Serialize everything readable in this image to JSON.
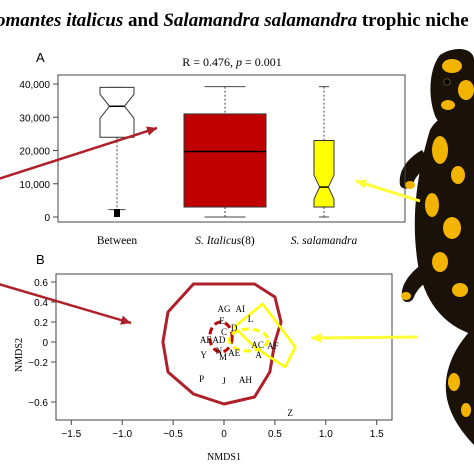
{
  "figure": {
    "title_parts": [
      {
        "text": "omantes italicus",
        "italic": true
      },
      {
        "text": " and ",
        "italic": false
      },
      {
        "text": "Salamandra salamandra",
        "italic": true
      },
      {
        "text": " trophic niche",
        "italic": false
      }
    ],
    "colors": {
      "italicus": "#c00000",
      "salamandra": "#ffff00",
      "arrow_red": "#b0202a",
      "arrow_yellow": "#ffff33",
      "salamander_black": "#1a1208",
      "salamander_yellow": "#f3b400"
    },
    "decor": [
      "salamander-photo",
      "red-arrows",
      "yellow-arrows"
    ]
  },
  "chart_data": [
    {
      "type": "boxplot",
      "panel_label": "A",
      "stat_text_prefix": "R = 0.476, ",
      "stat_p_symbol": "p",
      "stat_text_suffix": " = 0.001",
      "ylim": [
        0,
        40000
      ],
      "yticks": [
        0,
        10000,
        20000,
        30000,
        40000
      ],
      "ytick_labels": [
        "0",
        "10,000",
        "20,000",
        "30,000",
        "40,000"
      ],
      "categories": [
        {
          "label": "Between",
          "italic": false
        },
        {
          "label": "S. Italicus(8)",
          "italic": true,
          "italic_part": "S. Italicus",
          "plain_part": "(8)"
        },
        {
          "label": "S. salamandra",
          "italic": true,
          "italic_part": "S. salamandra",
          "plain_part": ""
        }
      ],
      "boxes": [
        {
          "q1": 24000,
          "median": 33300,
          "q3": 39000,
          "whisker_low": 2200,
          "whisker_high": 39000,
          "notch": true,
          "fill": "#ffffff",
          "outliers_low": [
            1800,
            1500,
            1200,
            900,
            600,
            300
          ]
        },
        {
          "q1": 3000,
          "median": 19700,
          "q3": 31000,
          "whisker_low": 0,
          "whisker_high": 39200,
          "notch": false,
          "fill": "#c00000",
          "outliers_low": []
        },
        {
          "q1": 3000,
          "median": 9000,
          "q3": 23000,
          "whisker_low": 0,
          "whisker_high": 39200,
          "notch": true,
          "fill": "#ffff00",
          "outliers_low": []
        }
      ]
    },
    {
      "type": "scatter",
      "panel_label": "B",
      "xlabel": "NMDS1",
      "ylabel": "NMDS2",
      "xlim": [
        -1.65,
        1.65
      ],
      "ylim": [
        -0.78,
        0.68
      ],
      "xticks": [
        -1.5,
        -1.0,
        -0.5,
        0,
        0.5,
        1.0,
        1.5
      ],
      "xtick_labels": [
        "−1.5",
        "−1.0",
        "−0.5",
        "0",
        "0.5",
        "1.0",
        "1.5"
      ],
      "yticks": [
        0.6,
        0.4,
        0.2,
        0,
        -0.2,
        -0.6
      ],
      "ytick_labels": [
        "0.6",
        "0.4",
        "0.2",
        "0",
        "−0.2",
        "−0.6"
      ],
      "points": [
        {
          "label": "AG",
          "x": 0.0,
          "y": 0.33
        },
        {
          "label": "AI",
          "x": 0.16,
          "y": 0.33
        },
        {
          "label": "L",
          "x": 0.26,
          "y": 0.23
        },
        {
          "label": "E",
          "x": -0.02,
          "y": 0.21
        },
        {
          "label": "D",
          "x": 0.1,
          "y": 0.14
        },
        {
          "label": "C",
          "x": 0.0,
          "y": 0.1
        },
        {
          "label": "AF",
          "x": -0.18,
          "y": 0.02
        },
        {
          "label": "AD",
          "x": -0.05,
          "y": 0.02
        },
        {
          "label": "AC",
          "x": 0.33,
          "y": -0.03
        },
        {
          "label": "AF",
          "x": 0.48,
          "y": -0.04
        },
        {
          "label": "N",
          "x": -0.05,
          "y": -0.09
        },
        {
          "label": "AE",
          "x": 0.1,
          "y": -0.11
        },
        {
          "label": "Y",
          "x": -0.2,
          "y": -0.13
        },
        {
          "label": "M",
          "x": -0.01,
          "y": -0.15
        },
        {
          "label": "A",
          "x": 0.34,
          "y": -0.13
        },
        {
          "label": "P",
          "x": -0.22,
          "y": -0.37
        },
        {
          "label": "J",
          "x": 0.0,
          "y": -0.39
        },
        {
          "label": "AH",
          "x": 0.21,
          "y": -0.38
        },
        {
          "label": "Z",
          "x": 0.65,
          "y": -0.71
        }
      ],
      "hulls": [
        {
          "group": "italicus-outer",
          "color": "#b0202a",
          "dashed": false,
          "points": [
            [
              -0.3,
              0.58
            ],
            [
              0.3,
              0.58
            ],
            [
              0.5,
              0.45
            ],
            [
              0.56,
              0.2
            ],
            [
              0.5,
              0.0
            ],
            [
              0.45,
              -0.3
            ],
            [
              0.3,
              -0.55
            ],
            [
              0.0,
              -0.62
            ],
            [
              -0.3,
              -0.52
            ],
            [
              -0.55,
              -0.3
            ],
            [
              -0.6,
              0.0
            ],
            [
              -0.55,
              0.3
            ]
          ]
        },
        {
          "group": "salamandra-outer",
          "color": "#ffff00",
          "dashed": false,
          "points": [
            [
              0.1,
              0.15
            ],
            [
              0.38,
              0.38
            ],
            [
              0.7,
              -0.05
            ],
            [
              0.6,
              -0.25
            ],
            [
              0.3,
              -0.05
            ]
          ]
        },
        {
          "group": "italicus-ellipse",
          "color": "#c00000",
          "dashed": true,
          "cx": -0.03,
          "cy": 0.05,
          "rx": 0.11,
          "ry": 0.15
        },
        {
          "group": "salamandra-ellipse",
          "color": "#ffff00",
          "dashed": true,
          "cx": 0.24,
          "cy": 0.02,
          "rx": 0.19,
          "ry": 0.11
        }
      ]
    }
  ]
}
